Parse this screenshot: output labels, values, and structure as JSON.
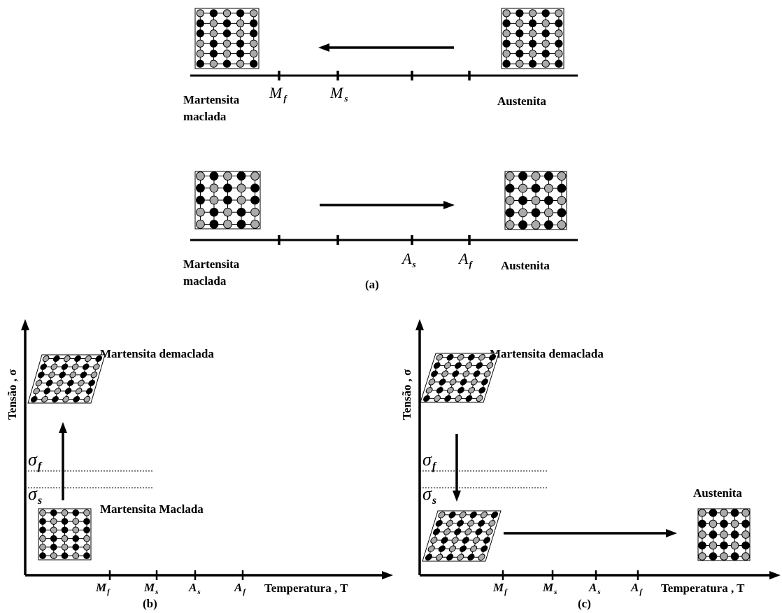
{
  "panel_a": {
    "cooling": {
      "left_label": [
        "Martensita",
        "maclada"
      ],
      "right_label": "Austenita",
      "ticks": [
        {
          "symbol": "M",
          "sub": "f"
        },
        {
          "symbol": "M",
          "sub": "s"
        }
      ]
    },
    "heating": {
      "left_label": [
        "Martensita",
        "maclada"
      ],
      "right_label": "Austenita",
      "ticks": [
        {
          "symbol": "A",
          "sub": "s"
        },
        {
          "symbol": "A",
          "sub": "f"
        }
      ]
    },
    "caption": "(a)"
  },
  "panel_b": {
    "y_axis_label": "Tensão , σ",
    "x_axis_label": "Temperatura , T",
    "top_label": "Martensita demaclada",
    "bottom_label": "Martensita Maclada",
    "sigma_f": {
      "symbol": "σ",
      "sub": "f"
    },
    "sigma_s": {
      "symbol": "σ",
      "sub": "s"
    },
    "ticks": [
      {
        "symbol": "M",
        "sub": "f"
      },
      {
        "symbol": "M",
        "sub": "s"
      },
      {
        "symbol": "A",
        "sub": "s"
      },
      {
        "symbol": "A",
        "sub": "f"
      }
    ],
    "caption": "(b)"
  },
  "panel_c": {
    "y_axis_label": "Tensão , σ",
    "x_axis_label": "Temperatura , T",
    "top_label": "Martensita demaclada",
    "right_label": "Austenita",
    "sigma_f": {
      "symbol": "σ",
      "sub": "f"
    },
    "sigma_s": {
      "symbol": "σ",
      "sub": "s"
    },
    "ticks": [
      {
        "symbol": "M",
        "sub": "f"
      },
      {
        "symbol": "M",
        "sub": "s"
      },
      {
        "symbol": "A",
        "sub": "s"
      },
      {
        "symbol": "A",
        "sub": "f"
      }
    ],
    "caption": "(c)"
  }
}
